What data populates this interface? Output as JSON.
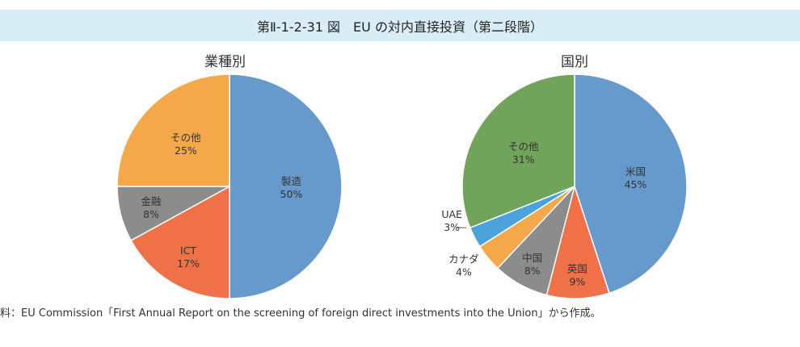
{
  "title": "第Ⅱ-1-2-31 図　EU の対内直接投資（第二段階）",
  "source": "料：EU Commission「First Annual Report on the screening of foreign direct investments into the Union」から作成。",
  "chart_data": [
    {
      "type": "pie",
      "title": "業種別",
      "slices": [
        {
          "name": "製造",
          "label": "50%",
          "value": 50,
          "color": "#6699cc"
        },
        {
          "name": "ICT",
          "label": "17%",
          "value": 17,
          "color": "#f07048"
        },
        {
          "name": "金融",
          "label": "8%",
          "value": 8,
          "color": "#8c8c8c"
        },
        {
          "name": "その他",
          "label": "25%",
          "value": 25,
          "color": "#f5a84a"
        }
      ]
    },
    {
      "type": "pie",
      "title": "国別",
      "slices": [
        {
          "name": "米国",
          "label": "45%",
          "value": 45,
          "color": "#6699cc"
        },
        {
          "name": "英国",
          "label": "9%",
          "value": 9,
          "color": "#f07048"
        },
        {
          "name": "中国",
          "label": "8%",
          "value": 8,
          "color": "#8c8c8c"
        },
        {
          "name": "カナダ",
          "label": "4%",
          "value": 4,
          "color": "#f5a84a"
        },
        {
          "name": "UAE",
          "label": "3%",
          "value": 3,
          "color": "#4ba3dc"
        },
        {
          "name": "その他",
          "label": "31%",
          "value": 31,
          "color": "#70a45a"
        }
      ]
    }
  ]
}
